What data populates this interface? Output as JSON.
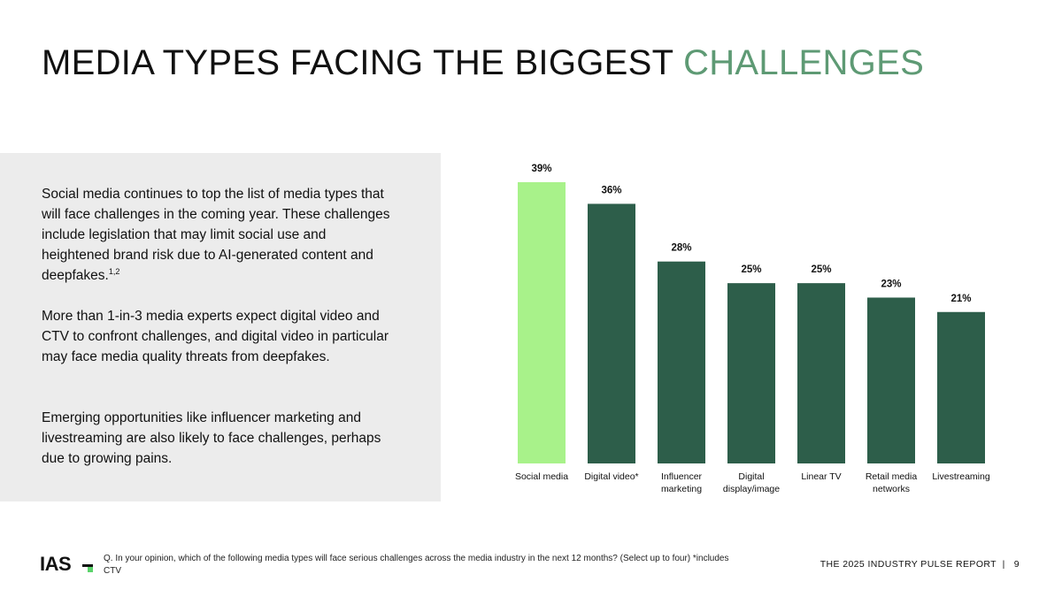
{
  "header": {
    "title_main": "MEDIA TYPES FACING THE BIGGEST",
    "title_accent": "CHALLENGES"
  },
  "body_text": {
    "p1": "Social media continues to top the list of media types that will face challenges in the coming year. These challenges include legislation that may limit social use and heightened brand risk due to AI-generated content and deepfakes.",
    "p1_sup": "1,2",
    "p2": "More than 1-in-3 media experts expect digital video and CTV to confront challenges, and digital video in particular may face media quality threats from deepfakes.",
    "p3": "Emerging opportunities like influencer marketing and livestreaming are also likely to face challenges, perhaps due to growing pains."
  },
  "chart_data": {
    "type": "bar",
    "title": "",
    "xlabel": "",
    "ylabel": "",
    "ylim": [
      0,
      39
    ],
    "categories": [
      "Social media",
      "Digital video*",
      "Influencer marketing",
      "Digital display/image",
      "Linear TV",
      "Retail media networks",
      "Livestreaming"
    ],
    "category_lines": [
      [
        "Social media"
      ],
      [
        "Digital video*"
      ],
      [
        "Influencer",
        "marketing"
      ],
      [
        "Digital",
        "display/image"
      ],
      [
        "Linear TV"
      ],
      [
        "Retail media",
        "networks"
      ],
      [
        "Livestreaming"
      ]
    ],
    "values": [
      39,
      36,
      28,
      25,
      25,
      23,
      21
    ],
    "value_labels": [
      "39%",
      "36%",
      "28%",
      "25%",
      "25%",
      "23%",
      "21%"
    ],
    "highlight_index": 0,
    "colors": {
      "highlight": "#a8f28a",
      "default": "#2d5e4a"
    }
  },
  "footer": {
    "logo": "IAS",
    "question": "Q. In your opinion, which of the following media types will face serious challenges across the media industry in the next 12 months? (Select up to four) *includes CTV",
    "report_label": "THE 2025 INDUSTRY PULSE REPORT",
    "separator": "|",
    "page_number": "9"
  }
}
